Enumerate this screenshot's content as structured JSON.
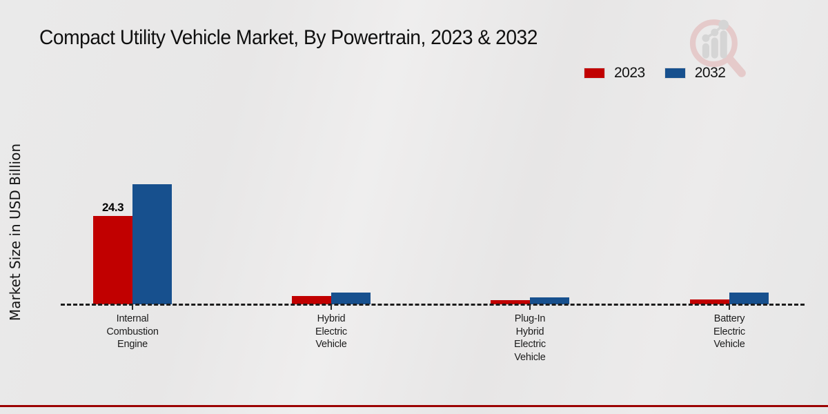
{
  "header": {
    "title": "Compact Utility Vehicle Market, By Powertrain, 2023 & 2032"
  },
  "watermark": {
    "icon": "market-research-magnifier-chart-logo"
  },
  "chart_data": {
    "type": "bar",
    "title": "Compact Utility Vehicle Market, By Powertrain, 2023 & 2032",
    "xlabel": "",
    "ylabel": "Market Size in USD Billion",
    "categories": [
      "Internal Combustion Engine",
      "Hybrid Electric Vehicle",
      "Plug-In Hybrid Electric Vehicle",
      "Battery Electric Vehicle"
    ],
    "category_label_lines": [
      [
        "Internal",
        "Combustion",
        "Engine"
      ],
      [
        "Hybrid",
        "Electric",
        "Vehicle"
      ],
      [
        "Plug-In",
        "Hybrid",
        "Electric",
        "Vehicle"
      ],
      [
        "Battery",
        "Electric",
        "Vehicle"
      ]
    ],
    "series": [
      {
        "name": "2023",
        "color": "#c10000",
        "values": [
          24.3,
          2.2,
          1.2,
          1.4
        ]
      },
      {
        "name": "2032",
        "color": "#17508e",
        "values": [
          33.0,
          3.3,
          1.9,
          3.3
        ]
      }
    ],
    "data_labels": [
      {
        "series": "2023",
        "category": "Internal Combustion Engine",
        "text": "24.3"
      }
    ],
    "ylim": [
      0,
      38
    ],
    "grid": false,
    "axis_style": "dashed-zero-line-only",
    "legend_position": "top-right"
  },
  "colors": {
    "series_2023": "#c10000",
    "series_2032": "#17508e",
    "footer_stripe": "#c20101",
    "footer_stripe_edge": "#9b0000",
    "background": "#e9e9e9",
    "watermark_pink": "#e4c5c5",
    "watermark_gray": "#d2d2d2"
  }
}
